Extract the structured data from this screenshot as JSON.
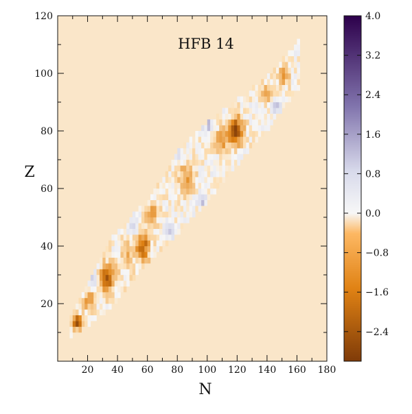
{
  "chart_data": {
    "type": "heatmap",
    "title": "HFB 14",
    "xlabel": "N",
    "ylabel": "Z",
    "xlim": [
      0,
      180
    ],
    "ylim": [
      0,
      120
    ],
    "x_ticks": [
      20,
      40,
      60,
      80,
      100,
      120,
      140,
      160,
      180
    ],
    "y_ticks": [
      20,
      40,
      60,
      80,
      100,
      120
    ],
    "grid": false,
    "colorbar": {
      "range": [
        -3.0,
        4.0
      ],
      "ticks": [
        4.0,
        3.2,
        2.4,
        1.6,
        0.8,
        0.0,
        -0.8,
        -1.6,
        -2.4
      ],
      "tick_labels": [
        "4.0",
        "3.2",
        "2.4",
        "1.6",
        "0.8",
        "0.0",
        "−0.8",
        "−1.6",
        "−2.4"
      ],
      "colors": {
        "min": "#7f3b08",
        "low": "#e08214",
        "mid_low": "#fde0b6",
        "zero": "#f7f7f7",
        "mid_high": "#d8daeb",
        "high": "#8073ac",
        "max": "#2d004b"
      }
    },
    "background_color": "#fae6c9",
    "band": {
      "description_points": [
        {
          "N": 8,
          "Z_low": 8,
          "Z_high": 14
        },
        {
          "N": 20,
          "Z_low": 12,
          "Z_high": 26
        },
        {
          "N": 35,
          "Z_low": 18,
          "Z_high": 42
        },
        {
          "N": 50,
          "Z_low": 28,
          "Z_high": 50
        },
        {
          "N": 60,
          "Z_low": 34,
          "Z_high": 55
        },
        {
          "N": 80,
          "Z_low": 44,
          "Z_high": 72
        },
        {
          "N": 100,
          "Z_low": 55,
          "Z_high": 82
        },
        {
          "N": 120,
          "Z_low": 68,
          "Z_high": 90
        },
        {
          "N": 140,
          "Z_low": 80,
          "Z_high": 98
        },
        {
          "N": 160,
          "Z_low": 94,
          "Z_high": 110
        }
      ]
    },
    "hotspots": [
      {
        "N": 12,
        "Z": 12,
        "value": -2.6,
        "radius": 3
      },
      {
        "N": 32,
        "Z": 28,
        "value": -2.2,
        "radius": 5
      },
      {
        "N": 56,
        "Z": 39,
        "value": -2.0,
        "radius": 5
      },
      {
        "N": 62,
        "Z": 50,
        "value": -1.6,
        "radius": 4
      },
      {
        "N": 85,
        "Z": 63,
        "value": -1.3,
        "radius": 5
      },
      {
        "N": 118,
        "Z": 79,
        "value": -2.5,
        "radius": 5
      },
      {
        "N": 108,
        "Z": 76,
        "value": -1.4,
        "radius": 4
      },
      {
        "N": 140,
        "Z": 92,
        "value": -1.2,
        "radius": 4
      },
      {
        "N": 150,
        "Z": 98,
        "value": -1.0,
        "radius": 4
      },
      {
        "N": 45,
        "Z": 35,
        "value": -0.9,
        "radius": 5
      },
      {
        "N": 20,
        "Z": 20,
        "value": -1.2,
        "radius": 4
      },
      {
        "N": 22,
        "Z": 28,
        "value": 1.2,
        "radius": 3
      },
      {
        "N": 50,
        "Z": 46,
        "value": 1.3,
        "radius": 3
      },
      {
        "N": 74,
        "Z": 45,
        "value": 1.0,
        "radius": 3
      },
      {
        "N": 96,
        "Z": 55,
        "value": 1.0,
        "radius": 3
      },
      {
        "N": 100,
        "Z": 82,
        "value": 1.1,
        "radius": 4
      },
      {
        "N": 145,
        "Z": 88,
        "value": 1.3,
        "radius": 3
      },
      {
        "N": 78,
        "Z": 72,
        "value": 0.8,
        "radius": 4
      },
      {
        "N": 12,
        "Z": 10,
        "value": 1.0,
        "radius": 2
      }
    ]
  }
}
